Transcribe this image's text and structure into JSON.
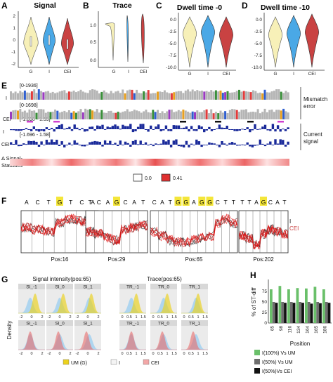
{
  "panels": {
    "A": {
      "letter": "A",
      "title": "Signal",
      "yticks": [
        "2",
        "1",
        "0",
        "-1",
        "-2"
      ],
      "groups": [
        "G",
        "I",
        "CEI"
      ]
    },
    "B": {
      "letter": "B",
      "title": "Trace",
      "yticks": [
        "1.0",
        "0.5",
        "0.0"
      ],
      "groups": [
        "G",
        "I",
        "CEI"
      ]
    },
    "C": {
      "letter": "C",
      "title": "Dwell time -0",
      "yticks": [
        "0.0",
        "-2.5",
        "-5.0",
        "-7.5",
        "-10.0"
      ],
      "groups": [
        "G",
        "I",
        "CEI"
      ]
    },
    "D": {
      "letter": "D",
      "title": "Dwell time -10",
      "yticks": [
        "0.0",
        "-2.5",
        "-5.0",
        "-7.5",
        "-10.0"
      ],
      "groups": [
        "G",
        "I",
        "CEI"
      ]
    },
    "E": {
      "letter": "E",
      "mm_range_I": "[0-1936]",
      "mm_range_CEI": "[0-1698]",
      "cs_range_I": "[-1.890 - 1.59]",
      "cs_range_CEI": "[-1.696 - 1.58]",
      "row_I": "I",
      "row_CEI": "CEI",
      "right_mismatch": [
        "Mismatch",
        "error"
      ],
      "right_current": [
        "Current",
        "signal"
      ],
      "delta_label": [
        "Δ Signal-",
        "Statistics"
      ],
      "legend_low": "0.0",
      "legend_high": "0.41"
    },
    "F": {
      "letter": "F",
      "windows": [
        {
          "bases": [
            "A",
            "C",
            "T",
            "G",
            "T",
            "C",
            "A"
          ],
          "highlight": [
            3
          ],
          "pos": "Pos:16"
        },
        {
          "bases": [
            "T",
            "C",
            "A",
            "G",
            "C",
            "A",
            "T"
          ],
          "highlight": [
            3
          ],
          "pos": "Pos:29"
        },
        {
          "bases": [
            "C",
            "A",
            "T",
            "G",
            "G",
            "A",
            "G",
            "G",
            "C",
            "T",
            "T"
          ],
          "highlight": [
            3,
            4,
            6,
            7
          ],
          "pos": "Pos:65"
        },
        {
          "bases": [
            "T",
            "T",
            "A",
            "G",
            "C",
            "A",
            "T"
          ],
          "highlight": [
            3
          ],
          "pos": "Pos:202"
        }
      ],
      "legend_I": "I",
      "legend_CEI": "CEI"
    },
    "G": {
      "letter": "G",
      "left_title": "Signal intensity(pos:65)",
      "right_title": "Trace(pos:65)",
      "ylabel": "Density",
      "row1_left": [
        "SI_-1",
        "SI_0",
        "SI_1"
      ],
      "row2_left": [
        "SI_-1",
        "SI_0",
        "SI_1"
      ],
      "row1_right": [
        "TR_-1",
        "TR_0",
        "TR_1"
      ],
      "row2_right": [
        "TR_-1",
        "TR_0",
        "TR_1"
      ],
      "si_ticks": [
        "-2",
        "0",
        "2"
      ],
      "tr_ticks": [
        "0",
        "0.5",
        "1",
        "1.5"
      ],
      "legend": [
        "UM (G)",
        "I",
        "CEI"
      ]
    },
    "H": {
      "letter": "H",
      "ylabel": "% of ST-diff",
      "xlabel": "Position",
      "yticks": [
        "75",
        "50",
        "25",
        "0"
      ],
      "legend": [
        "I(100%) Vs UM",
        "I(50%) Vs UM",
        "I(50%)Vs CEI"
      ]
    }
  },
  "chart_data": {
    "type": "bar",
    "categories": [
      "65",
      "98",
      "116",
      "134",
      "164",
      "165",
      "186"
    ],
    "ylabel": "% of ST-diff",
    "xlabel": "Position",
    "ylim": [
      0,
      100
    ],
    "series": [
      {
        "name": "I(100%) Vs UM",
        "values": [
          80,
          88,
          80,
          83,
          82,
          86,
          80
        ]
      },
      {
        "name": "I(50%) Vs UM",
        "values": [
          50,
          50,
          50,
          50,
          50,
          50,
          50
        ]
      },
      {
        "name": "I(50%)Vs CEI",
        "values": [
          48,
          48,
          48,
          48,
          46,
          47,
          48
        ]
      }
    ]
  },
  "colors": {
    "cream": "#f7f0b8",
    "blue": "#4aa8e6",
    "red": "#c94242",
    "yellow": "#ecd21c",
    "green": "#6ac06a",
    "grey": "#6e6e6e",
    "black": "#121212",
    "navy": "#1a2a9a",
    "heat": "#e03030"
  }
}
